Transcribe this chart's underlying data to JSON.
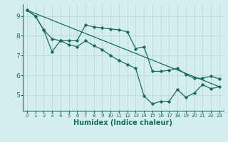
{
  "xlabel": "Humidex (Indice chaleur)",
  "bg_color": "#d4eeee",
  "line_color": "#1a6b5a",
  "grid_color": "#b8d8d8",
  "xlim": [
    -0.5,
    23.5
  ],
  "ylim": [
    4.2,
    9.6
  ],
  "yticks": [
    5,
    6,
    7,
    8,
    9
  ],
  "xticks": [
    0,
    1,
    2,
    3,
    4,
    5,
    6,
    7,
    8,
    9,
    10,
    11,
    12,
    13,
    14,
    15,
    16,
    17,
    18,
    19,
    20,
    21,
    22,
    23
  ],
  "line1_x": [
    0,
    1,
    2,
    3,
    4,
    5,
    6,
    7,
    8,
    9,
    10,
    11,
    12,
    13,
    14,
    15,
    16,
    17,
    18,
    19,
    20,
    21,
    22,
    23
  ],
  "line1_y": [
    9.3,
    9.0,
    8.3,
    7.85,
    7.75,
    7.75,
    7.75,
    8.55,
    8.45,
    8.4,
    8.35,
    8.3,
    8.2,
    7.35,
    7.45,
    6.2,
    6.2,
    6.25,
    6.35,
    6.05,
    5.85,
    5.85,
    5.95,
    5.82
  ],
  "line2_x": [
    0,
    1,
    2,
    3,
    4,
    5,
    6,
    7,
    8,
    9,
    10,
    11,
    12,
    13,
    14,
    15,
    16,
    17,
    18,
    19,
    20,
    21,
    22,
    23
  ],
  "line2_y": [
    9.3,
    9.0,
    8.3,
    7.2,
    7.75,
    7.55,
    7.45,
    7.75,
    7.5,
    7.3,
    7.0,
    6.75,
    6.55,
    6.35,
    4.95,
    4.55,
    4.68,
    4.68,
    5.28,
    4.88,
    5.1,
    5.52,
    5.32,
    5.42
  ],
  "line3_x": [
    0,
    23
  ],
  "line3_y": [
    9.3,
    5.42
  ]
}
